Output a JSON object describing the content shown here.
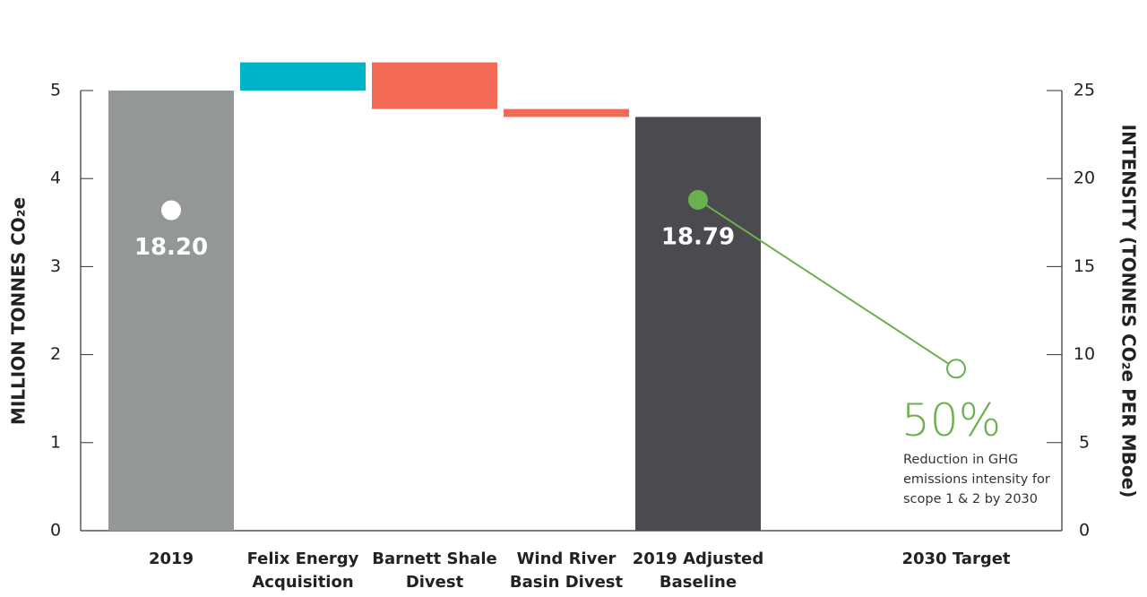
{
  "chart_data": {
    "type": "waterfall",
    "categories": [
      "2019",
      "Felix Energy Acquisition",
      "Barnett Shale Divest",
      "Wind River Basin Divest",
      "2019 Adjusted Baseline",
      "2030 Target"
    ],
    "values": [
      5.0,
      0.32,
      -0.53,
      -0.09,
      4.7,
      null
    ],
    "measure": [
      "absolute",
      "relative",
      "relative",
      "relative",
      "absolute",
      null
    ],
    "colors": [
      "#939796",
      "#00b4c8",
      "#f26a55",
      "#f26a55",
      "#4a4a4f",
      null
    ],
    "ylabel": "MILLION TONNES CO₂e",
    "y2label": "INTENSITY (TONNES CO₂e PER MBoe)",
    "ylim": [
      0,
      5
    ],
    "yticks": [
      0,
      1,
      2,
      3,
      4,
      5
    ],
    "y2lim": [
      0,
      25
    ],
    "y2ticks": [
      0,
      5,
      10,
      15,
      20,
      25
    ],
    "series": [
      {
        "axis": "y2",
        "type": "line",
        "color": "#6ab04c",
        "values": [
          18.2,
          null,
          null,
          null,
          18.79,
          9.2
        ],
        "value_labels": [
          "18.20",
          null,
          null,
          null,
          "18.79",
          null
        ],
        "marker_fills": [
          "#ffffff",
          null,
          null,
          null,
          "#6ab04c",
          "#ffffff"
        ]
      }
    ],
    "annotation": {
      "headline": "50%",
      "text": "Reduction in GHG emissions intensity for scope 1 & 2 by 2030"
    }
  }
}
